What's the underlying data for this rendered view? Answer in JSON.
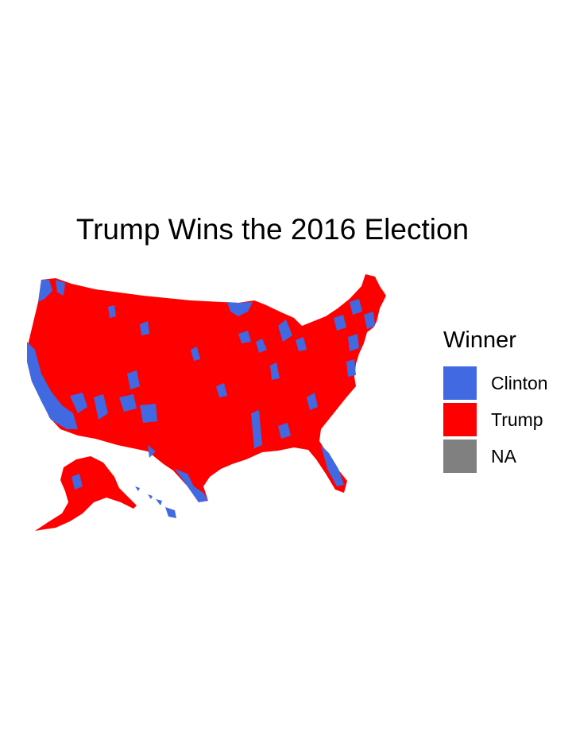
{
  "title": "Trump Wins the 2016 Election",
  "legend": {
    "title": "Winner",
    "items": [
      {
        "label": "Clinton",
        "color": "#4169e1"
      },
      {
        "label": "Trump",
        "color": "#ff0000"
      },
      {
        "label": "NA",
        "color": "#808080"
      }
    ]
  }
}
